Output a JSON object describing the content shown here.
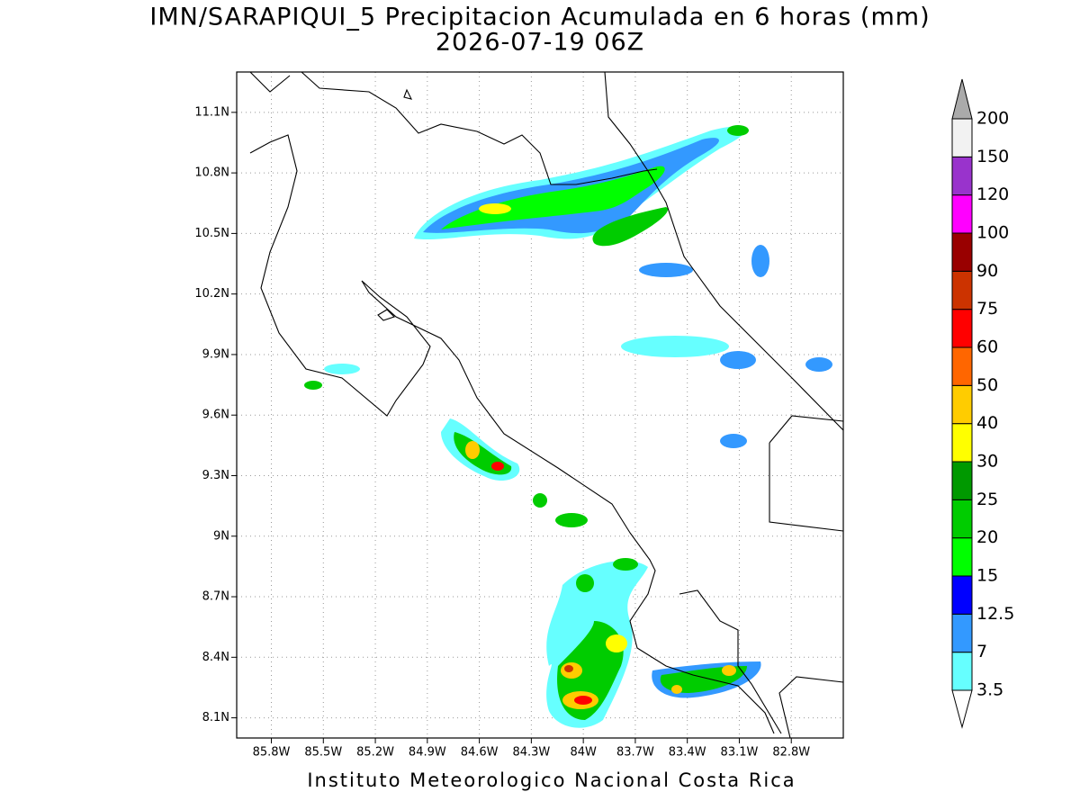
{
  "title": "IMN/SARAPIQUI_5 Precipitacion Acumulada en 6 horas (mm)",
  "subtitle": "2026-07-19 06Z",
  "footer": "Instituto Meteorologico Nacional Costa Rica",
  "map": {
    "xlim": [
      -86.0,
      -82.5
    ],
    "ylim": [
      8.0,
      11.3
    ],
    "grid": true,
    "xticks": [
      {
        "value": -85.8,
        "label": "85.8W"
      },
      {
        "value": -85.5,
        "label": "85.5W"
      },
      {
        "value": -85.2,
        "label": "85.2W"
      },
      {
        "value": -84.9,
        "label": "84.9W"
      },
      {
        "value": -84.6,
        "label": "84.6W"
      },
      {
        "value": -84.3,
        "label": "84.3W"
      },
      {
        "value": -84,
        "label": "84W"
      },
      {
        "value": -83.7,
        "label": "83.7W"
      },
      {
        "value": -83.4,
        "label": "83.4W"
      },
      {
        "value": -83.1,
        "label": "83.1W"
      },
      {
        "value": -82.8,
        "label": "82.8W"
      }
    ],
    "yticks": [
      {
        "value": 8.1,
        "label": "8.1N"
      },
      {
        "value": 8.4,
        "label": "8.4N"
      },
      {
        "value": 8.7,
        "label": "8.7N"
      },
      {
        "value": 9,
        "label": "9N"
      },
      {
        "value": 9.3,
        "label": "9.3N"
      },
      {
        "value": 9.6,
        "label": "9.6N"
      },
      {
        "value": 9.9,
        "label": "9.9N"
      },
      {
        "value": 10.2,
        "label": "10.2N"
      },
      {
        "value": 10.5,
        "label": "10.5N"
      },
      {
        "value": 10.8,
        "label": "10.8N"
      },
      {
        "value": 11.1,
        "label": "11.1N"
      }
    ]
  },
  "colorbar": {
    "levels": [
      3.5,
      7,
      12.5,
      15,
      20,
      25,
      30,
      40,
      50,
      60,
      75,
      90,
      100,
      120,
      150,
      200
    ],
    "colors": [
      "#ffffff",
      "#66ffff",
      "#3399ff",
      "#0000ff",
      "#00ff00",
      "#00cc00",
      "#009900",
      "#ffff00",
      "#ffcc00",
      "#ff6600",
      "#ff0000",
      "#cc3300",
      "#990000",
      "#ff00ff",
      "#9933cc",
      "#f2f2f2",
      "#aaaaaa"
    ]
  }
}
